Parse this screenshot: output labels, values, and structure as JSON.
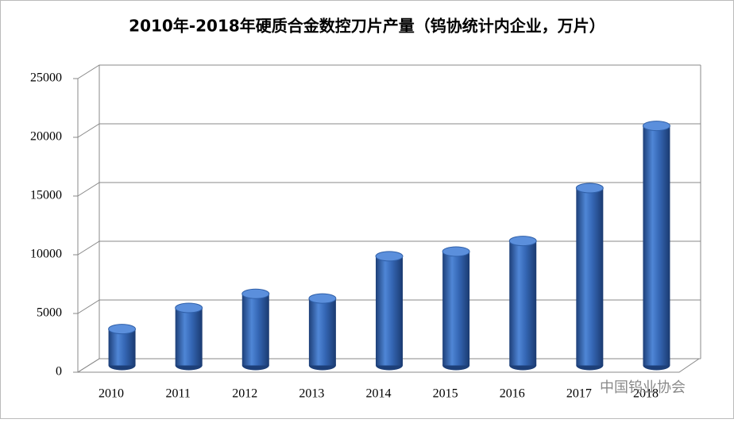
{
  "chart_data": {
    "type": "bar3d",
    "title": "2010年-2018年硬质合金数控刀片产量（钨协统计内企业，万片）",
    "categories": [
      "2010",
      "2011",
      "2012",
      "2013",
      "2014",
      "2015",
      "2016",
      "2017",
      "2018"
    ],
    "values": [
      3100,
      4900,
      6100,
      5700,
      9300,
      9700,
      10600,
      15100,
      20400
    ],
    "color": "#2f5fa8",
    "ylim": [
      0,
      25000
    ],
    "yticks": [
      0,
      5000,
      10000,
      15000,
      20000,
      25000
    ],
    "grid": true,
    "watermark": "中国钨业协会"
  }
}
